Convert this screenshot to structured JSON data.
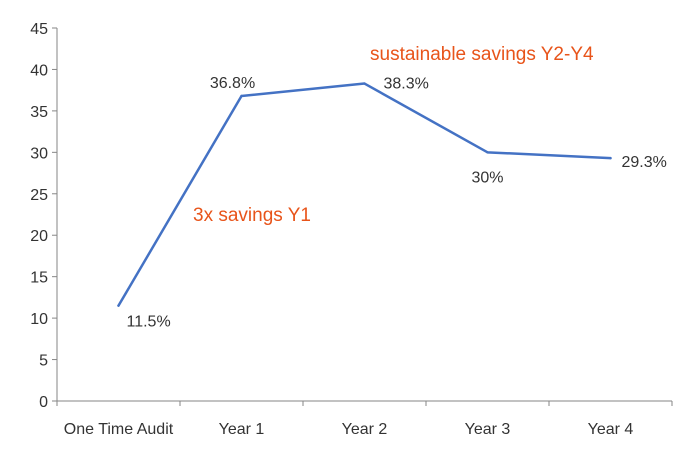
{
  "chart_data": {
    "type": "line",
    "categories": [
      "One Time Audit",
      "Year 1",
      "Year 2",
      "Year 3",
      "Year 4"
    ],
    "series": [
      {
        "values": [
          11.5,
          36.8,
          38.3,
          30,
          29.3
        ],
        "data_labels": [
          "11.5%",
          "36.8%",
          "38.3%",
          "30%",
          "29.3%"
        ],
        "color": "#4472c4"
      }
    ],
    "title": "",
    "xlabel": "",
    "ylabel": "",
    "ylim": [
      0,
      45
    ],
    "yticks": [
      0,
      5,
      10,
      15,
      20,
      25,
      30,
      35,
      40,
      45
    ],
    "grid": false,
    "legend": "none",
    "annotations": [
      {
        "text": "3x savings Y1",
        "color": "#e8541a"
      },
      {
        "text": "sustainable savings Y2-Y4",
        "color": "#e8541a"
      }
    ]
  }
}
